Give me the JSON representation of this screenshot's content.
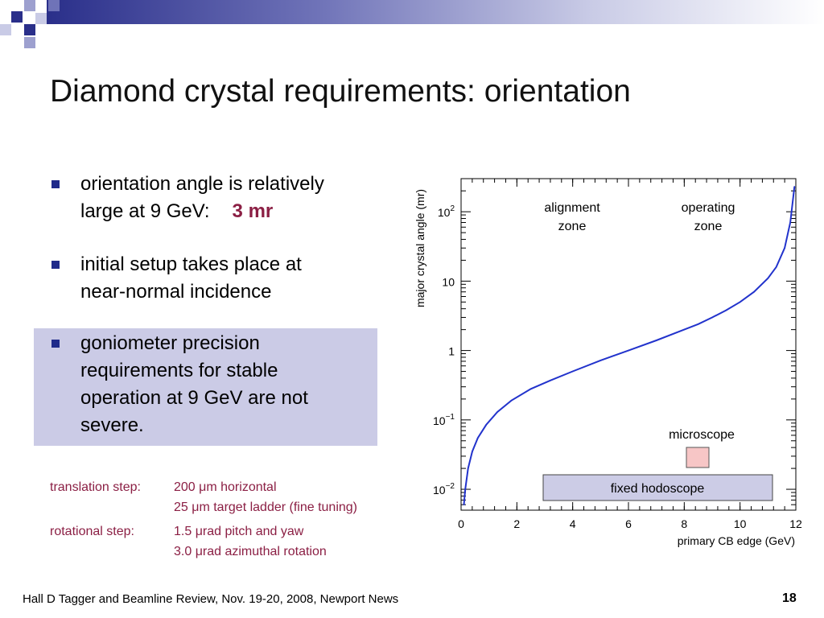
{
  "slide": {
    "title": "Diamond crystal requirements: orientation",
    "bullets": [
      {
        "line1": "orientation angle is relatively",
        "line2": "large at 9 GeV:",
        "emphasis": "3 mr"
      },
      {
        "line1": "initial setup takes place at",
        "line2": "near-normal incidence"
      },
      {
        "line1": "goniometer precision",
        "line2": "requirements for stable",
        "line3": "operation at 9 GeV are not",
        "line4": "severe."
      }
    ],
    "translation_step": {
      "label": "translation step:",
      "value1": "200 μm horizontal",
      "value2": "25 μm target ladder (fine tuning)"
    },
    "rotational_step": {
      "label": "rotational step:",
      "value1": "1.5 μrad pitch and yaw",
      "value2": "3.0 μrad azimuthal rotation"
    },
    "footer": "Hall D Tagger and Beamline Review, Nov. 19-20, 2008, Newport News",
    "page_number": "18"
  },
  "chart_data": {
    "type": "line",
    "xlabel": "primary CB edge (GeV)",
    "ylabel": "major crystal angle  (mr)",
    "xlim": [
      0,
      12
    ],
    "ylim": [
      0.005,
      300
    ],
    "yscale": "log",
    "x_ticks": [
      "0",
      "2",
      "4",
      "6",
      "8",
      "10",
      "12"
    ],
    "y_ticks": [
      {
        "base": "10",
        "exp": "−2",
        "value": 0.01
      },
      {
        "base": "10",
        "exp": "−1",
        "value": 0.1
      },
      {
        "base": "1",
        "exp": "",
        "value": 1
      },
      {
        "base": "10",
        "exp": "",
        "value": 10
      },
      {
        "base": "10",
        "exp": "2",
        "value": 100
      }
    ],
    "series": [
      {
        "color": "#2233cc",
        "x": [
          0.1,
          0.15,
          0.25,
          0.4,
          0.6,
          0.9,
          1.3,
          1.8,
          2.5,
          3.2,
          4.0,
          5.0,
          6.0,
          7.0,
          8.0,
          8.5,
          9.0,
          9.5,
          10.0,
          10.5,
          11.0,
          11.3,
          11.6,
          11.8,
          11.95
        ],
        "y": [
          0.006,
          0.01,
          0.02,
          0.035,
          0.055,
          0.085,
          0.13,
          0.19,
          0.28,
          0.37,
          0.5,
          0.72,
          1.0,
          1.4,
          2.0,
          2.4,
          3.0,
          3.8,
          5.0,
          7.0,
          11,
          16,
          30,
          70,
          230
        ]
      }
    ],
    "annotations": {
      "alignment_zone": [
        "alignment",
        "zone"
      ],
      "operating_zone": [
        "operating",
        "zone"
      ],
      "microscope": "microscope",
      "fixed_hodoscope": "fixed hodoscope"
    },
    "colors": {
      "curve": "#2233cc",
      "hodoscope_fill": "#cccce6",
      "microscope_fill": "#f7c6c6",
      "accent": "#8b1f44"
    }
  }
}
